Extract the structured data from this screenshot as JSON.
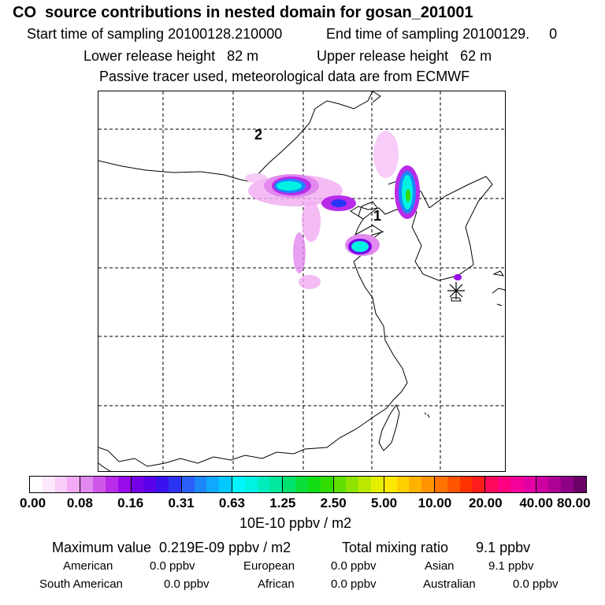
{
  "header": {
    "title": "CO  source contributions in nested domain for gosan_201001",
    "start_time": "Start time of sampling 20100128.210000",
    "end_time": "End time of sampling 20100129.     0",
    "lower_height": "Lower release height   82 m",
    "upper_height": "Upper release height   62 m",
    "tracer_note": "Passive tracer used, meteorological data are from ECMWF"
  },
  "map": {
    "source_labels": [
      "2",
      "1"
    ]
  },
  "colorbar": {
    "tick_labels": [
      "0.00",
      "0.08",
      "0.16",
      "0.31",
      "0.63",
      "1.25",
      "2.50",
      "5.00",
      "10.00",
      "20.00",
      "40.00",
      "80.00"
    ],
    "units": "10E-10 ppbv / m2",
    "colors": [
      "#ffffff",
      "#fde8fd",
      "#f8ccf8",
      "#f1aaf3",
      "#e288ee",
      "#cf58ea",
      "#b82ce9",
      "#9a0bea",
      "#7500e8",
      "#5b00ea",
      "#3a12ef",
      "#2a35f4",
      "#2b5ffa",
      "#1c86fb",
      "#0ea9fc",
      "#00c9fd",
      "#00f6ff",
      "#00f2e2",
      "#00ecbf",
      "#00e89d",
      "#00e26f",
      "#0bde3a",
      "#10dd12",
      "#32dc00",
      "#5fdf00",
      "#8fe300",
      "#bce800",
      "#e6ee00",
      "#ffe800",
      "#ffd000",
      "#ffb300",
      "#ff9400",
      "#ff7300",
      "#ff5500",
      "#ff3300",
      "#ff1c1c",
      "#ff0a5a",
      "#ff0080",
      "#f4009a",
      "#e300a4",
      "#cc00a0",
      "#ad0095",
      "#8e0085",
      "#6c0068"
    ]
  },
  "summary": {
    "max_value": "Maximum value  0.219E-09 ppbv / m2",
    "total_mixing": "Total mixing ratio       9.1 ppbv",
    "regions": {
      "american": {
        "name": "American",
        "value": "0.0 ppbv"
      },
      "european": {
        "name": "European",
        "value": "0.0 ppbv"
      },
      "asian": {
        "name": "Asian",
        "value": "9.1 ppbv"
      },
      "south_american": {
        "name": "South American",
        "value": "0.0 ppbv"
      },
      "african": {
        "name": "African",
        "value": "0.0 ppbv"
      },
      "australian": {
        "name": "Australian",
        "value": "0.0 ppbv"
      }
    }
  }
}
